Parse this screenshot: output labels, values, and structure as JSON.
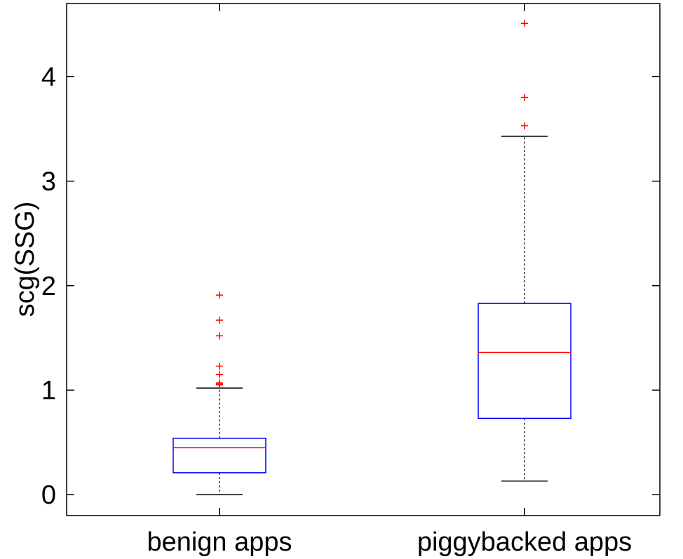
{
  "chart_data": {
    "type": "box",
    "ylabel": "scg(SSG)",
    "ylim": [
      -0.2,
      4.7
    ],
    "yticks": [
      0,
      1,
      2,
      3,
      4
    ],
    "categories": [
      "benign apps",
      "piggybacked apps"
    ],
    "boxes": [
      {
        "category": "benign apps",
        "whisker_low": 0.0,
        "q1": 0.21,
        "median": 0.45,
        "q3": 0.54,
        "whisker_high": 1.02,
        "outliers": [
          1.05,
          1.06,
          1.07,
          1.15,
          1.23,
          1.52,
          1.67,
          1.91
        ]
      },
      {
        "category": "piggybacked apps",
        "whisker_low": 0.13,
        "q1": 0.73,
        "median": 1.36,
        "q3": 1.83,
        "whisker_high": 3.43,
        "outliers": [
          3.53,
          3.8,
          4.51
        ]
      }
    ],
    "colors": {
      "box": "#0000ff",
      "median": "#ff0000",
      "whisker": "#000000",
      "outlier": "#ff0000",
      "axes": "#000000"
    }
  }
}
